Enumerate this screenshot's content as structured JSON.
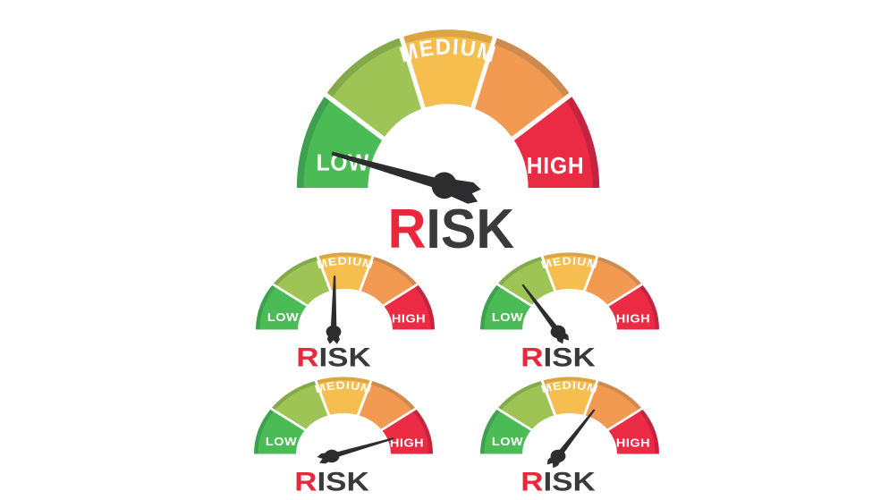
{
  "labels": {
    "low": "LOW",
    "medium": "MEDIUM",
    "high": "HIGH"
  },
  "title": {
    "first_letter": "R",
    "rest": "ISK",
    "first_color": "#e8293c",
    "rest_color": "#3a3a3c"
  },
  "palette": {
    "background": "#ffffff",
    "needle": "#2d2d2f",
    "divider": "#ffffff",
    "label_text": "#ffffff",
    "segments": [
      {
        "name": "green",
        "fill": "#4bbb55",
        "rim": "#3fa04f"
      },
      {
        "name": "yellow-green",
        "fill": "#9dc455",
        "rim": "#82a94a"
      },
      {
        "name": "amber",
        "fill": "#f5be4f",
        "rim": "#dca443"
      },
      {
        "name": "orange",
        "fill": "#f29a52",
        "rim": "#ce8a50"
      },
      {
        "name": "red",
        "fill": "#eb2b43",
        "rim": "#c52441"
      }
    ]
  },
  "gauges": [
    {
      "id": "gauge-main",
      "needle_angle_deg": 164
    },
    {
      "id": "gauge-small-1",
      "needle_angle_deg": 89
    },
    {
      "id": "gauge-small-2",
      "needle_angle_deg": 127
    },
    {
      "id": "gauge-small-3",
      "needle_angle_deg": 16
    },
    {
      "id": "gauge-small-4",
      "needle_angle_deg": 52
    }
  ]
}
